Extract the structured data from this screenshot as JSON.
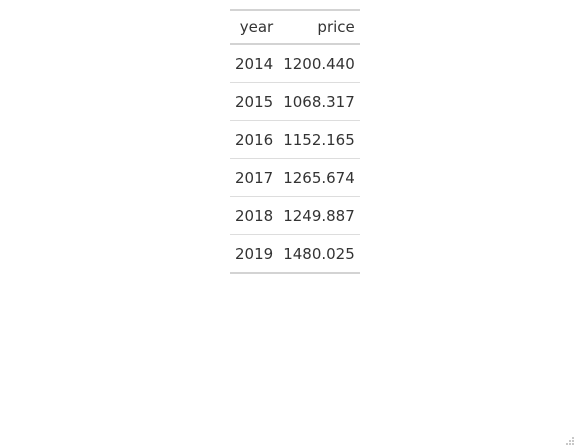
{
  "table": {
    "headers": {
      "year": "year",
      "price": "price"
    },
    "rows": [
      {
        "year": "2014",
        "price": "1200.440"
      },
      {
        "year": "2015",
        "price": "1068.317"
      },
      {
        "year": "2016",
        "price": "1152.165"
      },
      {
        "year": "2017",
        "price": "1265.674"
      },
      {
        "year": "2018",
        "price": "1249.887"
      },
      {
        "year": "2019",
        "price": "1480.025"
      }
    ]
  },
  "colors": {
    "text": "#333333",
    "rule": "#d3d3d3",
    "row_divider": "#dddddd"
  }
}
